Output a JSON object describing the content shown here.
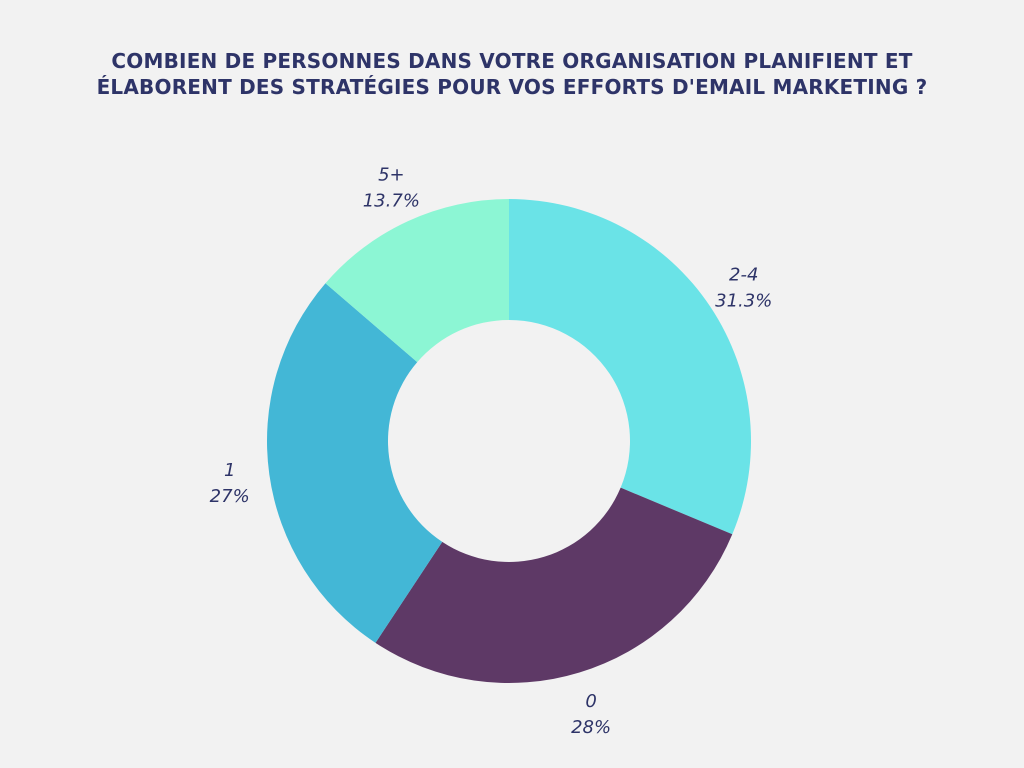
{
  "title": {
    "line1": "COMBIEN DE PERSONNES DANS VOTRE ORGANISATION PLANIFIENT ET",
    "line2": "ÉLABORENT DES STRATÉGIES POUR VOS EFFORTS D'EMAIL MARKETING ?"
  },
  "chart_data": {
    "type": "pie",
    "variant": "donut",
    "title": "COMBIEN DE PERSONNES DANS VOTRE ORGANISATION PLANIFIENT ET ÉLABORENT DES STRATÉGIES POUR VOS EFFORTS D'EMAIL MARKETING ?",
    "slices": [
      {
        "category": "2-4",
        "value": 31.3,
        "label": "31.3%",
        "color": "#6ae3e7"
      },
      {
        "category": "0",
        "value": 28,
        "label": "28%",
        "color": "#5e3966"
      },
      {
        "category": "1",
        "value": 27,
        "label": "27%",
        "color": "#43b7d6"
      },
      {
        "category": "5+",
        "value": 13.7,
        "label": "13.7%",
        "color": "#8cf6d4"
      }
    ],
    "start_angle": "top, clockwise",
    "legend": "none",
    "text_color": "#2e3468",
    "background": "#f2f2f2"
  }
}
